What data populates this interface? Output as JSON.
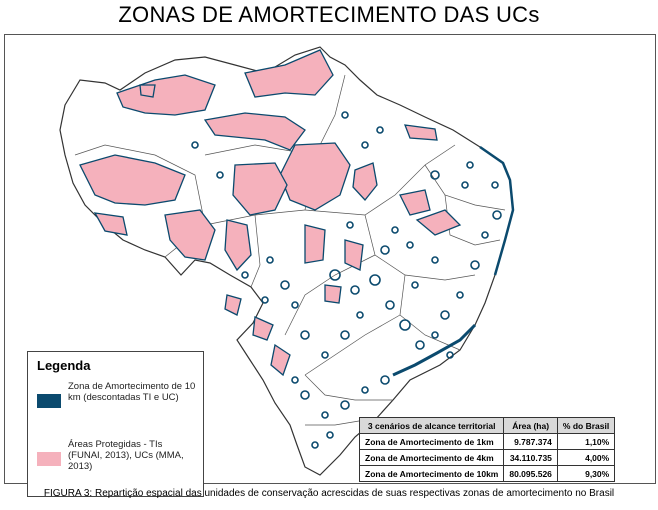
{
  "title": "ZONAS DE AMORTECIMENTO DAS UCs",
  "legend": {
    "title": "Legenda",
    "items": [
      {
        "label": "Zona de Amortecimento de 10 km (descontadas TI e UC)",
        "color": "#0b4a6e"
      },
      {
        "label": "Áreas Protegidas - TIs (FUNAI, 2013), UCs (MMA, 2013)",
        "color": "#f5b1bc"
      }
    ]
  },
  "table": {
    "headers": [
      "3 cenários de alcance territorial",
      "Área (ha)",
      "% do Brasil"
    ],
    "rows": [
      {
        "scenario": "Zona de Amortecimento de 1km",
        "area": "9.787.374",
        "pct": "1,10%"
      },
      {
        "scenario": "Zona de Amortecimento de 4km",
        "area": "34.110.735",
        "pct": "4,00%"
      },
      {
        "scenario": "Zona de Amortecimento de 10km",
        "area": "80.095.526",
        "pct": "9,30%"
      }
    ]
  },
  "caption": "FIGURA 3: Repartição espacial das unidades de conservação acrescidas de suas respectivas zonas de amortecimento no Brasil"
}
